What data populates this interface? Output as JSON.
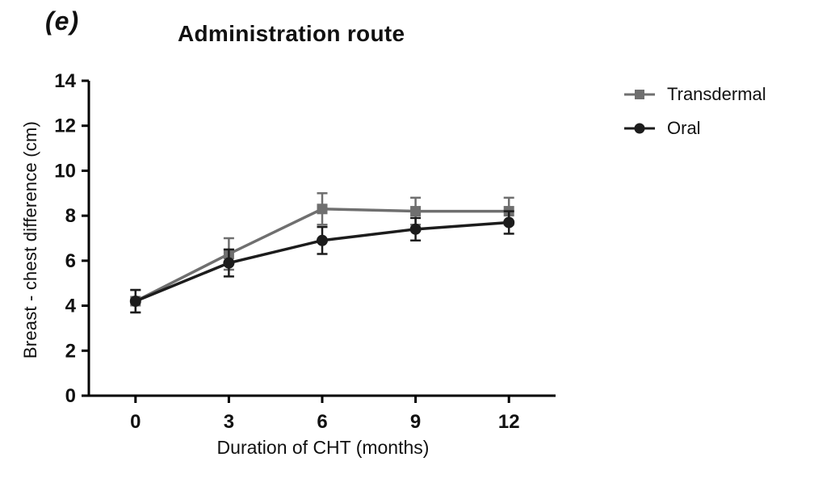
{
  "panel_label": "(e)",
  "chart_data": {
    "type": "line",
    "title": "Administration route",
    "xlabel": "Duration of CHT (months)",
    "ylabel": "Breast - chest difference (cm)",
    "x": [
      0,
      3,
      6,
      9,
      12
    ],
    "xticks": [
      0,
      3,
      6,
      9,
      12
    ],
    "yticks": [
      0,
      2,
      4,
      6,
      8,
      10,
      12,
      14
    ],
    "xlim": [
      -1.5,
      13.5
    ],
    "ylim": [
      0,
      14
    ],
    "grid": false,
    "legend_position": "right",
    "axis_color": "#000000",
    "series": [
      {
        "name": "Transdermal",
        "marker": "square",
        "color": "#6f6f6f",
        "values": [
          4.2,
          6.3,
          8.3,
          8.2,
          8.2
        ],
        "errors": [
          0.5,
          0.7,
          0.7,
          0.6,
          0.6
        ]
      },
      {
        "name": "Oral",
        "marker": "circle",
        "color": "#1c1c1c",
        "values": [
          4.2,
          5.9,
          6.9,
          7.4,
          7.7
        ],
        "errors": [
          0.5,
          0.6,
          0.6,
          0.5,
          0.5
        ]
      }
    ]
  }
}
